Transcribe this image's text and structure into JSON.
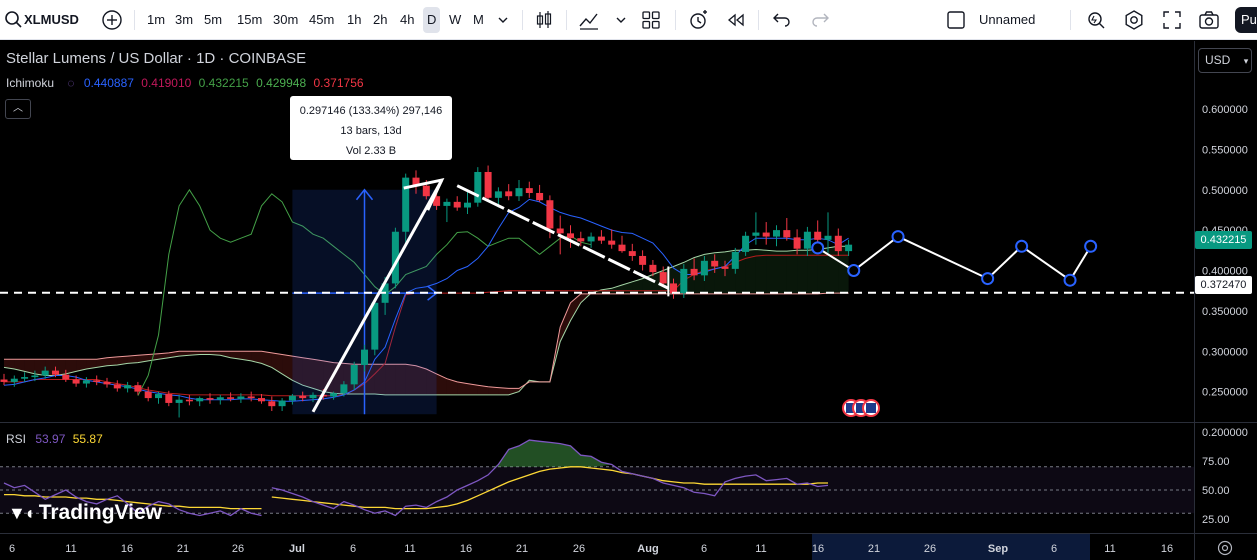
{
  "toolbar": {
    "symbol": "XLMUSD",
    "timeframes": [
      "1m",
      "3m",
      "5m",
      "15m",
      "30m",
      "45m",
      "1h",
      "2h",
      "4h",
      "D",
      "W",
      "M"
    ],
    "active_timeframe": "D",
    "layout_name": "Unnamed",
    "publish_label": "Pu"
  },
  "legend": {
    "title": "Stellar Lumens / US Dollar · 1D · COINBASE",
    "indicator_name": "Ichimoku",
    "indicator_values": [
      {
        "value": "0.440887",
        "color": "#2962ff"
      },
      {
        "value": "0.419010",
        "color": "#c2185b"
      },
      {
        "value": "0.432215",
        "color": "#43a047"
      },
      {
        "value": "0.429948",
        "color": "#4caf50"
      },
      {
        "value": "0.371756",
        "color": "#f23645"
      }
    ],
    "collapse_icon": "chevron-up-icon"
  },
  "measure": {
    "line1": "0.297146 (133.34%) 297,146",
    "line2": "13 bars, 13d",
    "line3": "Vol 2.33 B"
  },
  "rsi": {
    "name": "RSI",
    "value": "53.97",
    "ma_value": "55.87",
    "ticks": [
      "75.00",
      "50.00",
      "25.00"
    ],
    "series": [
      52,
      50,
      47,
      44,
      40,
      37,
      34,
      40,
      37,
      33,
      30,
      32,
      28,
      36,
      37,
      35,
      40,
      44,
      50,
      54,
      58,
      63,
      72,
      85,
      88,
      93,
      92,
      91,
      90,
      88,
      80,
      79,
      74,
      72,
      66,
      64,
      62,
      60,
      56,
      54,
      52,
      48,
      47,
      45,
      57,
      60,
      62,
      63,
      58,
      59,
      60,
      55,
      56,
      53,
      54
    ],
    "ma_series": [
      44,
      43,
      42,
      41,
      40,
      39,
      38,
      37,
      36,
      35,
      35,
      35,
      34,
      34,
      34,
      34,
      35,
      36,
      38,
      41,
      45,
      49,
      53,
      57,
      60,
      63,
      66,
      68,
      69,
      70,
      70,
      69,
      68,
      67,
      65,
      64,
      62,
      60,
      58,
      57,
      56,
      56,
      55,
      55,
      55,
      55,
      55,
      55,
      55,
      55,
      55,
      55,
      55,
      56,
      56
    ]
  },
  "price_axis": {
    "currency": "USD",
    "ticks": [
      "0.600000",
      "0.550000",
      "0.500000",
      "0.450000",
      "0.400000",
      "0.350000",
      "0.300000",
      "0.250000",
      "0.200000"
    ],
    "current_price": "0.432215",
    "current_color": "#089981",
    "line_price": "0.372470"
  },
  "time_axis": {
    "ticks": [
      "6",
      "11",
      "16",
      "21",
      "26",
      "Jul",
      "6",
      "11",
      "16",
      "21",
      "26",
      "Aug",
      "6",
      "11",
      "16",
      "21",
      "26",
      "Sep",
      "6",
      "11",
      "16"
    ]
  },
  "branding": {
    "logo_text": "TradingView"
  },
  "chart_data": {
    "type": "candlestick",
    "symbol": "XLMUSD",
    "interval": "1D",
    "ylim": [
      0.2,
      0.62
    ],
    "candles": [
      {
        "o": 0.265,
        "h": 0.272,
        "l": 0.258,
        "c": 0.262
      },
      {
        "o": 0.262,
        "h": 0.27,
        "l": 0.256,
        "c": 0.266
      },
      {
        "o": 0.266,
        "h": 0.274,
        "l": 0.262,
        "c": 0.268
      },
      {
        "o": 0.268,
        "h": 0.276,
        "l": 0.263,
        "c": 0.27
      },
      {
        "o": 0.27,
        "h": 0.281,
        "l": 0.266,
        "c": 0.276
      },
      {
        "o": 0.276,
        "h": 0.281,
        "l": 0.268,
        "c": 0.271
      },
      {
        "o": 0.271,
        "h": 0.277,
        "l": 0.262,
        "c": 0.265
      },
      {
        "o": 0.265,
        "h": 0.27,
        "l": 0.256,
        "c": 0.26
      },
      {
        "o": 0.26,
        "h": 0.268,
        "l": 0.255,
        "c": 0.264
      },
      {
        "o": 0.264,
        "h": 0.27,
        "l": 0.258,
        "c": 0.262
      },
      {
        "o": 0.262,
        "h": 0.267,
        "l": 0.255,
        "c": 0.259
      },
      {
        "o": 0.259,
        "h": 0.264,
        "l": 0.25,
        "c": 0.254
      },
      {
        "o": 0.254,
        "h": 0.262,
        "l": 0.249,
        "c": 0.258
      },
      {
        "o": 0.258,
        "h": 0.262,
        "l": 0.246,
        "c": 0.25
      },
      {
        "o": 0.25,
        "h": 0.256,
        "l": 0.238,
        "c": 0.242
      },
      {
        "o": 0.242,
        "h": 0.25,
        "l": 0.235,
        "c": 0.247
      },
      {
        "o": 0.247,
        "h": 0.251,
        "l": 0.232,
        "c": 0.236
      },
      {
        "o": 0.236,
        "h": 0.246,
        "l": 0.218,
        "c": 0.24
      },
      {
        "o": 0.24,
        "h": 0.246,
        "l": 0.233,
        "c": 0.238
      },
      {
        "o": 0.238,
        "h": 0.244,
        "l": 0.232,
        "c": 0.242
      },
      {
        "o": 0.242,
        "h": 0.248,
        "l": 0.235,
        "c": 0.24
      },
      {
        "o": 0.24,
        "h": 0.246,
        "l": 0.234,
        "c": 0.243
      },
      {
        "o": 0.243,
        "h": 0.249,
        "l": 0.238,
        "c": 0.241
      },
      {
        "o": 0.241,
        "h": 0.248,
        "l": 0.236,
        "c": 0.244
      },
      {
        "o": 0.244,
        "h": 0.25,
        "l": 0.238,
        "c": 0.242
      },
      {
        "o": 0.242,
        "h": 0.247,
        "l": 0.235,
        "c": 0.238
      },
      {
        "o": 0.238,
        "h": 0.244,
        "l": 0.226,
        "c": 0.232
      },
      {
        "o": 0.232,
        "h": 0.242,
        "l": 0.226,
        "c": 0.239
      },
      {
        "o": 0.239,
        "h": 0.247,
        "l": 0.234,
        "c": 0.245
      },
      {
        "o": 0.245,
        "h": 0.25,
        "l": 0.238,
        "c": 0.242
      },
      {
        "o": 0.242,
        "h": 0.249,
        "l": 0.237,
        "c": 0.246
      },
      {
        "o": 0.246,
        "h": 0.253,
        "l": 0.24,
        "c": 0.244
      },
      {
        "o": 0.244,
        "h": 0.25,
        "l": 0.24,
        "c": 0.248
      },
      {
        "o": 0.248,
        "h": 0.263,
        "l": 0.244,
        "c": 0.259
      },
      {
        "o": 0.259,
        "h": 0.287,
        "l": 0.252,
        "c": 0.283
      },
      {
        "o": 0.283,
        "h": 0.308,
        "l": 0.275,
        "c": 0.302
      },
      {
        "o": 0.302,
        "h": 0.366,
        "l": 0.295,
        "c": 0.36
      },
      {
        "o": 0.36,
        "h": 0.392,
        "l": 0.345,
        "c": 0.384
      },
      {
        "o": 0.384,
        "h": 0.453,
        "l": 0.378,
        "c": 0.448
      },
      {
        "o": 0.448,
        "h": 0.52,
        "l": 0.432,
        "c": 0.515
      },
      {
        "o": 0.515,
        "h": 0.524,
        "l": 0.495,
        "c": 0.505
      },
      {
        "o": 0.505,
        "h": 0.512,
        "l": 0.488,
        "c": 0.492
      },
      {
        "o": 0.492,
        "h": 0.503,
        "l": 0.475,
        "c": 0.48
      },
      {
        "o": 0.48,
        "h": 0.489,
        "l": 0.46,
        "c": 0.485
      },
      {
        "o": 0.485,
        "h": 0.492,
        "l": 0.474,
        "c": 0.478
      },
      {
        "o": 0.478,
        "h": 0.498,
        "l": 0.47,
        "c": 0.484
      },
      {
        "o": 0.484,
        "h": 0.528,
        "l": 0.479,
        "c": 0.522
      },
      {
        "o": 0.522,
        "h": 0.53,
        "l": 0.485,
        "c": 0.49
      },
      {
        "o": 0.49,
        "h": 0.503,
        "l": 0.478,
        "c": 0.498
      },
      {
        "o": 0.498,
        "h": 0.507,
        "l": 0.487,
        "c": 0.492
      },
      {
        "o": 0.492,
        "h": 0.512,
        "l": 0.486,
        "c": 0.502
      },
      {
        "o": 0.502,
        "h": 0.51,
        "l": 0.49,
        "c": 0.496
      },
      {
        "o": 0.496,
        "h": 0.506,
        "l": 0.485,
        "c": 0.487
      },
      {
        "o": 0.487,
        "h": 0.493,
        "l": 0.44,
        "c": 0.452
      },
      {
        "o": 0.452,
        "h": 0.468,
        "l": 0.42,
        "c": 0.446
      },
      {
        "o": 0.446,
        "h": 0.456,
        "l": 0.428,
        "c": 0.44
      },
      {
        "o": 0.44,
        "h": 0.448,
        "l": 0.43,
        "c": 0.436
      },
      {
        "o": 0.436,
        "h": 0.447,
        "l": 0.428,
        "c": 0.442
      },
      {
        "o": 0.442,
        "h": 0.45,
        "l": 0.433,
        "c": 0.437
      },
      {
        "o": 0.437,
        "h": 0.451,
        "l": 0.427,
        "c": 0.432
      },
      {
        "o": 0.432,
        "h": 0.443,
        "l": 0.422,
        "c": 0.424
      },
      {
        "o": 0.424,
        "h": 0.433,
        "l": 0.412,
        "c": 0.418
      },
      {
        "o": 0.418,
        "h": 0.425,
        "l": 0.4,
        "c": 0.407
      },
      {
        "o": 0.407,
        "h": 0.413,
        "l": 0.393,
        "c": 0.398
      },
      {
        "o": 0.398,
        "h": 0.405,
        "l": 0.381,
        "c": 0.384
      },
      {
        "o": 0.384,
        "h": 0.39,
        "l": 0.365,
        "c": 0.372
      },
      {
        "o": 0.372,
        "h": 0.408,
        "l": 0.366,
        "c": 0.402
      },
      {
        "o": 0.402,
        "h": 0.415,
        "l": 0.388,
        "c": 0.394
      },
      {
        "o": 0.394,
        "h": 0.418,
        "l": 0.387,
        "c": 0.412
      },
      {
        "o": 0.412,
        "h": 0.42,
        "l": 0.397,
        "c": 0.405
      },
      {
        "o": 0.405,
        "h": 0.412,
        "l": 0.393,
        "c": 0.402
      },
      {
        "o": 0.402,
        "h": 0.428,
        "l": 0.396,
        "c": 0.423
      },
      {
        "o": 0.423,
        "h": 0.448,
        "l": 0.418,
        "c": 0.443
      },
      {
        "o": 0.443,
        "h": 0.472,
        "l": 0.432,
        "c": 0.447
      },
      {
        "o": 0.447,
        "h": 0.46,
        "l": 0.432,
        "c": 0.442
      },
      {
        "o": 0.442,
        "h": 0.456,
        "l": 0.43,
        "c": 0.45
      },
      {
        "o": 0.45,
        "h": 0.465,
        "l": 0.437,
        "c": 0.441
      },
      {
        "o": 0.441,
        "h": 0.451,
        "l": 0.42,
        "c": 0.427
      },
      {
        "o": 0.427,
        "h": 0.454,
        "l": 0.418,
        "c": 0.448
      },
      {
        "o": 0.448,
        "h": 0.462,
        "l": 0.432,
        "c": 0.438
      },
      {
        "o": 0.438,
        "h": 0.472,
        "l": 0.422,
        "c": 0.443
      },
      {
        "o": 0.443,
        "h": 0.452,
        "l": 0.418,
        "c": 0.424
      },
      {
        "o": 0.424,
        "h": 0.438,
        "l": 0.418,
        "c": 0.432
      }
    ],
    "tenkan": [
      0.258,
      0.259,
      0.262,
      0.265,
      0.267,
      0.27,
      0.27,
      0.268,
      0.264,
      0.262,
      0.26,
      0.258,
      0.256,
      0.253,
      0.25,
      0.248,
      0.246,
      0.245,
      0.242,
      0.24,
      0.24,
      0.24,
      0.24,
      0.241,
      0.241,
      0.24,
      0.239,
      0.238,
      0.238,
      0.239,
      0.24,
      0.241,
      0.243,
      0.246,
      0.252,
      0.262,
      0.29,
      0.305,
      0.34,
      0.372,
      0.378,
      0.38,
      0.384,
      0.39,
      0.4,
      0.405,
      0.415,
      0.43,
      0.452,
      0.472,
      0.478,
      0.488,
      0.485,
      0.478,
      0.472,
      0.468,
      0.465,
      0.46,
      0.455,
      0.45,
      0.447,
      0.446,
      0.44,
      0.434,
      0.42,
      0.403,
      0.395,
      0.395,
      0.398,
      0.402,
      0.405,
      0.418,
      0.432,
      0.44,
      0.44,
      0.44,
      0.44,
      0.438,
      0.438,
      0.44,
      0.438,
      0.432,
      0.44
    ],
    "kijun": [
      0.262,
      0.262,
      0.262,
      0.265,
      0.265,
      0.265,
      0.265,
      0.265,
      0.265,
      0.265,
      0.262,
      0.26,
      0.258,
      0.255,
      0.252,
      0.25,
      0.248,
      0.247,
      0.246,
      0.246,
      0.246,
      0.246,
      0.246,
      0.246,
      0.246,
      0.246,
      0.245,
      0.245,
      0.245,
      0.245,
      0.245,
      0.245,
      0.245,
      0.246,
      0.252,
      0.26,
      0.272,
      0.285,
      0.33,
      0.37,
      0.372,
      0.372,
      0.372,
      0.372,
      0.372,
      0.372,
      0.372,
      0.373,
      0.374,
      0.375,
      0.375,
      0.375,
      0.375,
      0.375,
      0.375,
      0.375,
      0.375,
      0.375,
      0.375,
      0.375,
      0.375,
      0.375,
      0.375,
      0.375,
      0.375,
      0.375,
      0.388,
      0.395,
      0.4,
      0.402,
      0.405,
      0.41,
      0.415,
      0.418,
      0.419,
      0.419,
      0.419,
      0.419,
      0.419,
      0.419,
      0.419,
      0.419,
      0.419
    ],
    "chikou": [
      0.245,
      0.27,
      0.32,
      0.42,
      0.48,
      0.5,
      0.48,
      0.45,
      0.44,
      0.435,
      0.44,
      0.445,
      0.48,
      0.495,
      0.485,
      0.46,
      0.455,
      0.445,
      0.44,
      0.43,
      0.42,
      0.41,
      0.395,
      0.38,
      0.37,
      0.38,
      0.395,
      0.4,
      0.405,
      0.42,
      0.432,
      0.447,
      0.448,
      0.44,
      0.43,
      0.435,
      0.44,
      0.44,
      0.43,
      0.42,
      0.43,
      0.44,
      0.443,
      0.435,
      0.432
    ],
    "span_a": [
      0.28,
      0.278,
      0.275,
      0.272,
      0.27,
      0.27,
      0.272,
      0.275,
      0.278,
      0.28,
      0.282,
      0.283,
      0.285,
      0.286,
      0.288,
      0.29,
      0.292,
      0.294,
      0.295,
      0.296,
      0.296,
      0.295,
      0.292,
      0.29,
      0.288,
      0.285,
      0.28,
      0.272,
      0.264,
      0.258,
      0.254,
      0.25,
      0.248,
      0.247,
      0.247,
      0.247,
      0.247,
      0.246,
      0.246,
      0.246,
      0.246,
      0.246,
      0.246,
      0.246,
      0.246,
      0.246,
      0.246,
      0.246,
      0.246,
      0.246,
      0.25,
      0.264,
      0.262,
      0.262,
      0.312,
      0.338,
      0.36,
      0.372,
      0.376,
      0.378,
      0.382,
      0.386,
      0.39,
      0.395,
      0.4,
      0.405,
      0.41,
      0.416,
      0.42,
      0.422,
      0.423,
      0.425,
      0.425,
      0.426,
      0.425,
      0.424,
      0.424,
      0.425,
      0.425,
      0.426,
      0.428,
      0.43,
      0.43
    ],
    "span_b": [
      0.29,
      0.29,
      0.29,
      0.29,
      0.29,
      0.29,
      0.29,
      0.29,
      0.29,
      0.29,
      0.292,
      0.293,
      0.294,
      0.295,
      0.296,
      0.297,
      0.298,
      0.3,
      0.3,
      0.3,
      0.3,
      0.3,
      0.3,
      0.3,
      0.3,
      0.3,
      0.298,
      0.296,
      0.294,
      0.292,
      0.29,
      0.288,
      0.286,
      0.285,
      0.284,
      0.284,
      0.284,
      0.284,
      0.284,
      0.284,
      0.282,
      0.278,
      0.272,
      0.266,
      0.262,
      0.26,
      0.258,
      0.256,
      0.255,
      0.254,
      0.254,
      0.262,
      0.262,
      0.262,
      0.33,
      0.36,
      0.371,
      0.371,
      0.371,
      0.371,
      0.371,
      0.371,
      0.371,
      0.371,
      0.371,
      0.371,
      0.371,
      0.371,
      0.371,
      0.371,
      0.371,
      0.371,
      0.371,
      0.371,
      0.371,
      0.371,
      0.371,
      0.371,
      0.371,
      0.371,
      0.372,
      0.372,
      0.372
    ],
    "horizontal_line": 0.37247,
    "projection_path": [
      0.428,
      0.4,
      0.442,
      0.39,
      0.43,
      0.388,
      0.43
    ]
  }
}
